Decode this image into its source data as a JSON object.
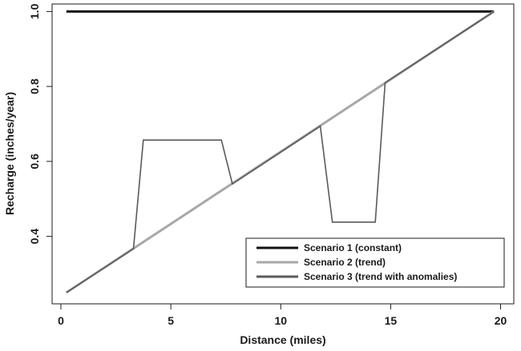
{
  "chart_data": {
    "type": "line",
    "xlabel": "Distance (miles)",
    "ylabel": "Recharge (inches/year)",
    "xlim": [
      -0.4,
      20.6
    ],
    "ylim": [
      0.22,
      1.02
    ],
    "x_ticks": [
      0,
      5,
      10,
      15,
      20
    ],
    "x_tick_labels": [
      "0",
      "5",
      "10",
      "15",
      "20"
    ],
    "y_ticks": [
      0.4,
      0.6,
      0.8,
      1.0
    ],
    "y_tick_labels": [
      "0.4",
      "0.6",
      "0.8",
      "1.0"
    ],
    "grid": false,
    "legend_position": "bottom-right",
    "series": [
      {
        "name": "Scenario 1 (constant)",
        "color": "#111111",
        "line_width": 3,
        "x": [
          0.25,
          19.7
        ],
        "y": [
          1.0,
          1.0
        ]
      },
      {
        "name": "Scenario 2 (trend)",
        "color": "#a8a8a8",
        "line_width": 3,
        "x": [
          0.25,
          19.7
        ],
        "y": [
          0.25,
          1.0
        ]
      },
      {
        "name": "Scenario 3 (trend with anomalies)",
        "color": "#5a5a5a",
        "line_width": 1.6,
        "x": [
          0.25,
          3.3,
          3.75,
          7.3,
          7.8,
          11.8,
          12.35,
          14.3,
          14.75,
          19.7
        ],
        "y": [
          0.25,
          0.367,
          0.657,
          0.657,
          0.54,
          0.694,
          0.438,
          0.438,
          0.81,
          1.0
        ]
      }
    ]
  }
}
